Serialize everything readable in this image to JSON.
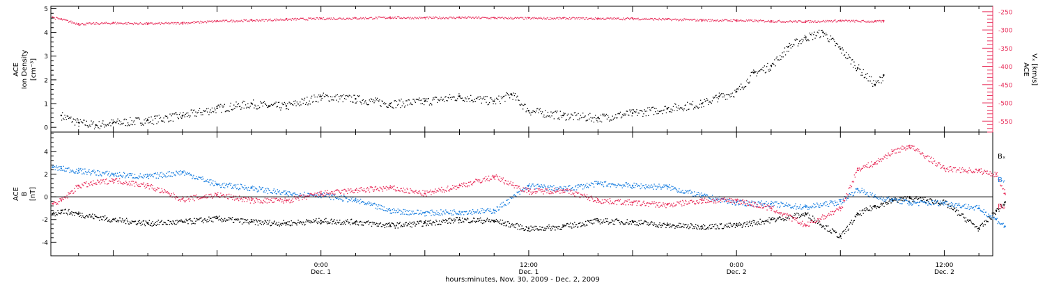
{
  "colors": {
    "black": "#000000",
    "pink": "#e8305c",
    "blue": "#1a7fe0"
  },
  "x_axis": {
    "title": "hours:minutes, Nov. 30, 2009 - Dec. 2, 2009",
    "ticks": [
      {
        "hour": 24,
        "time": "0:00",
        "date": "Dec. 1"
      },
      {
        "hour": 36,
        "time": "12:00",
        "date": "Dec. 1"
      },
      {
        "hour": 48,
        "time": "0:00",
        "date": "Dec. 2"
      },
      {
        "hour": 60,
        "time": "12:00",
        "date": "Dec. 2"
      }
    ],
    "range_hours": [
      8.4,
      62.8
    ],
    "data_end_hour": 56.5
  },
  "top_panel": {
    "ylabel_lines": [
      "ACE",
      "Ion Density",
      "[cm⁻³]"
    ],
    "ylim": [
      -0.2,
      5.1
    ],
    "yticks": [
      "0",
      "1",
      "2",
      "3",
      "4",
      "5"
    ],
    "right_ylabel_lines": [
      "ACE",
      "Vₓ [km/s]"
    ],
    "right_ylim": [
      -580,
      -235
    ],
    "right_yticks": [
      "-250",
      "-300",
      "-350",
      "-400",
      "-450",
      "-500",
      "-550"
    ]
  },
  "bottom_panel": {
    "ylabel_lines": [
      "ACE",
      "B",
      "[nT]"
    ],
    "ylim": [
      -5.2,
      5.7
    ],
    "yticks": [
      "4",
      "2",
      "0",
      "-2",
      "-4"
    ],
    "legend": [
      {
        "label": "Bₓ",
        "color": "#000000"
      },
      {
        "label": "Bᵧ",
        "color": "#1a7fe0"
      },
      {
        "label": "Bᵩ",
        "color": "#e8305c"
      }
    ]
  },
  "chart_data": [
    {
      "type": "scatter",
      "title": "",
      "ylabel": "ACE Ion Density [cm⁻³]",
      "y2label": "ACE Vₓ [km/s]",
      "xlabel": "hours:minutes, Nov. 30, 2009 - Dec. 2, 2009",
      "series": [
        {
          "name": "Ion Density",
          "axis": "left",
          "color": "#000000",
          "x": [
            9,
            10,
            11,
            12,
            14,
            16,
            18,
            20,
            21,
            22,
            24,
            26,
            28,
            30,
            32,
            34,
            35,
            36,
            38,
            40,
            42,
            44,
            46,
            47,
            48,
            49,
            50,
            51,
            52,
            53,
            54,
            55,
            56,
            56.5
          ],
          "y": [
            0.5,
            0.2,
            0.1,
            0.2,
            0.3,
            0.5,
            0.8,
            1.0,
            0.9,
            0.9,
            1.3,
            1.2,
            1.0,
            1.1,
            1.3,
            1.1,
            1.4,
            0.7,
            0.5,
            0.4,
            0.6,
            0.8,
            1.0,
            1.3,
            1.5,
            2.3,
            2.6,
            3.4,
            3.8,
            4.0,
            3.3,
            2.5,
            1.8,
            2.2
          ]
        },
        {
          "name": "Vx",
          "axis": "right",
          "color": "#e8305c",
          "x": [
            8.5,
            9,
            10,
            12,
            14,
            16,
            18,
            20,
            22,
            24,
            26,
            28,
            30,
            32,
            34,
            36,
            38,
            40,
            42,
            44,
            46,
            48,
            50,
            52,
            54,
            56,
            56.5
          ],
          "y": [
            -265,
            -270,
            -283,
            -280,
            -282,
            -280,
            -275,
            -273,
            -270,
            -268,
            -267,
            -265,
            -266,
            -265,
            -266,
            -267,
            -267,
            -268,
            -268,
            -270,
            -272,
            -273,
            -275,
            -276,
            -274,
            -276,
            -275
          ]
        }
      ]
    },
    {
      "type": "line",
      "title": "",
      "ylabel": "ACE B [nT]",
      "series": [
        {
          "name": "Bₓ",
          "color": "#000000",
          "x": [
            8.5,
            9,
            10,
            12,
            14,
            16,
            18,
            20,
            22,
            24,
            26,
            28,
            30,
            32,
            34,
            36,
            38,
            40,
            42,
            44,
            46,
            48,
            50,
            52,
            54,
            55,
            56,
            57,
            58,
            60,
            62,
            63,
            63.5
          ],
          "y": [
            -1.5,
            -1.2,
            -1.5,
            -2.0,
            -2.3,
            -2.2,
            -1.9,
            -2.2,
            -2.3,
            -2.1,
            -2.2,
            -2.5,
            -2.3,
            -2.0,
            -2.1,
            -2.8,
            -2.6,
            -2.1,
            -2.2,
            -2.5,
            -2.6,
            -2.5,
            -2.0,
            -1.5,
            -3.5,
            -1.5,
            -0.8,
            -0.3,
            -0.1,
            -0.5,
            -2.8,
            -1.2,
            -0.5
          ]
        },
        {
          "name": "Bᵧ",
          "color": "#1a7fe0",
          "x": [
            8.5,
            9,
            10,
            12,
            14,
            16,
            18,
            20,
            22,
            24,
            26,
            28,
            30,
            32,
            34,
            36,
            38,
            40,
            42,
            44,
            46,
            48,
            50,
            52,
            54,
            55,
            56,
            57,
            58,
            60,
            62,
            63,
            63.5
          ],
          "y": [
            2.6,
            2.5,
            2.3,
            2.0,
            1.8,
            2.2,
            1.1,
            0.8,
            0.3,
            0.2,
            -0.3,
            -1.2,
            -1.4,
            -1.3,
            -1.2,
            1.0,
            0.7,
            1.2,
            1.0,
            0.9,
            0.1,
            -0.5,
            -0.6,
            -0.9,
            -0.4,
            0.7,
            0.0,
            -0.2,
            -0.5,
            -0.5,
            -1.0,
            -2.0,
            -2.6
          ]
        },
        {
          "name": "Bᵩ",
          "color": "#e8305c",
          "x": [
            8.5,
            9,
            10,
            12,
            14,
            16,
            18,
            20,
            22,
            24,
            26,
            28,
            30,
            32,
            34,
            36,
            38,
            40,
            42,
            44,
            46,
            48,
            50,
            52,
            54,
            55,
            56,
            57,
            58,
            60,
            62,
            63,
            63.5
          ],
          "y": [
            -0.6,
            -0.3,
            1.0,
            1.5,
            1.0,
            -0.2,
            0.2,
            -0.3,
            -0.3,
            0.3,
            0.6,
            0.8,
            0.3,
            1.0,
            1.8,
            0.5,
            0.6,
            -0.3,
            -0.5,
            -0.7,
            -0.3,
            -0.3,
            -1.0,
            -2.5,
            -1.0,
            2.5,
            3.0,
            4.0,
            4.5,
            2.5,
            2.3,
            2.0,
            0.3
          ]
        }
      ]
    }
  ]
}
